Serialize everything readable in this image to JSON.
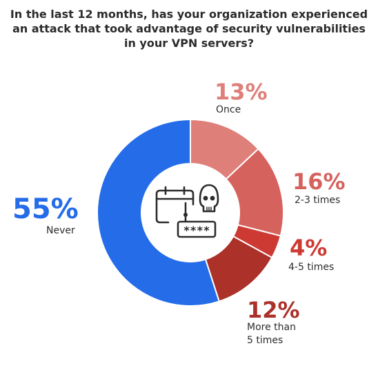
{
  "title": {
    "lines": [
      "In the last 12 months, has your organization experienced",
      "an attack that took advantage of security vulnerabilities",
      "in your VPN servers?"
    ]
  },
  "chart_data": {
    "type": "pie",
    "subtype": "donut",
    "title": "In the last 12 months, has your organization experienced an attack that took advantage of security vulnerabilities in your VPN servers?",
    "slices": [
      {
        "label": "Once",
        "value": 13,
        "display": "13%",
        "color": "#df7f7a"
      },
      {
        "label": "2-3 times",
        "value": 16,
        "display": "16%",
        "color": "#d6625d"
      },
      {
        "label": "4-5 times",
        "value": 4,
        "display": "4%",
        "color": "#cd3a33"
      },
      {
        "label": "More than 5 times",
        "value": 12,
        "display": "12%",
        "color": "#ab3129"
      },
      {
        "label": "Never",
        "value": 55,
        "display": "55%",
        "color": "#256ce9"
      }
    ],
    "start_angle_deg": 0,
    "direction": "clockwise",
    "legend": "none"
  },
  "center_icon": "calendar-skull-password-icon",
  "center_icon_text": "****"
}
